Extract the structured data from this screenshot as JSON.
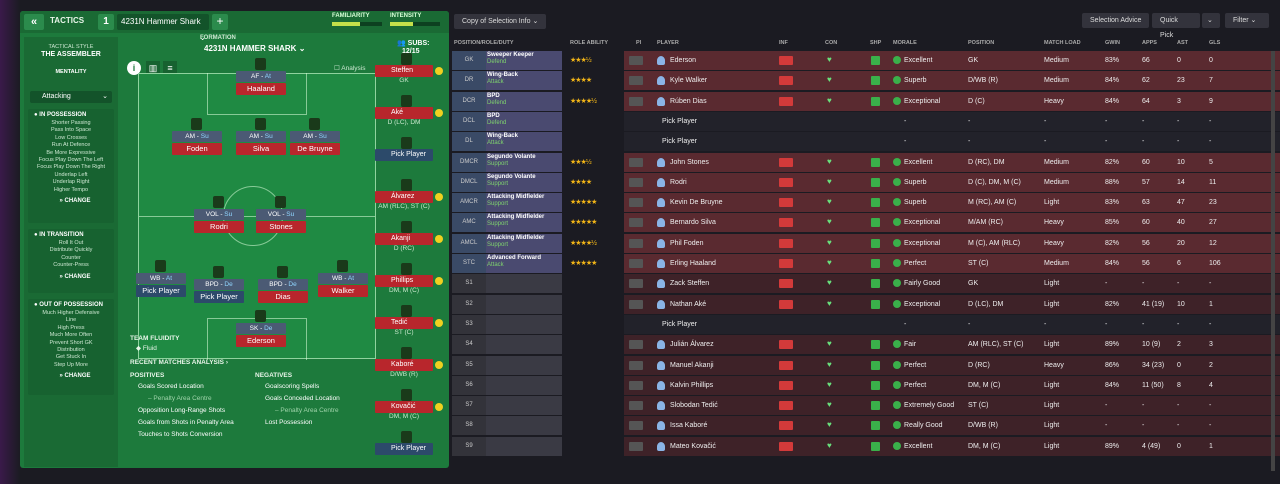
{
  "topbar": {
    "tactics": "TACTICS",
    "tab_num": "1",
    "tactic_name": "4231N Hammer Shark",
    "familiarity": "FAMILIARITY",
    "intensity": "INTENSITY",
    "familiarity_level": 0.55,
    "intensity_level": 0.45
  },
  "style": {
    "label": "TACTICAL STYLE",
    "name": "THE ASSEMBLER",
    "mentality_label": "MENTALITY",
    "mentality": "Attacking",
    "in_possession": {
      "title": "IN POSSESSION",
      "items": [
        "Shorter Passing",
        "Pass Into Space",
        "Low Crosses",
        "Run At Defence",
        "Be More Expressive",
        "Focus Play Down The Left",
        "Focus Play Down The Right",
        "Underlap Left",
        "Underlap Right",
        "Higher Tempo"
      ],
      "change": "CHANGE"
    },
    "in_transition": {
      "title": "IN TRANSITION",
      "items": [
        "Roll It Out",
        "Distribute Quickly",
        "Counter",
        "Counter-Press"
      ],
      "change": "CHANGE"
    },
    "out_possession": {
      "title": "OUT OF POSSESSION",
      "items": [
        "Much Higher Defensive",
        "Line",
        "High Press",
        "Much More Often",
        "Prevent Short GK",
        "Distribution",
        "Get Stuck In",
        "Step Up More"
      ],
      "change": "CHANGE"
    }
  },
  "formation": {
    "label": "FORMATION",
    "name": "4231N HAMMER SHARK",
    "analysis": "Analysis",
    "pieces": [
      {
        "role": "AF",
        "duty": "At",
        "name": "Haaland"
      },
      {
        "role": "AM",
        "duty": "Su",
        "name": "Foden"
      },
      {
        "role": "AM",
        "duty": "Su",
        "name": "Silva"
      },
      {
        "role": "AM",
        "duty": "Su",
        "name": "De Bruyne"
      },
      {
        "role": "VOL",
        "duty": "Su",
        "name": "Rodri"
      },
      {
        "role": "VOL",
        "duty": "Su",
        "name": "Stones"
      },
      {
        "role": "WB",
        "duty": "At",
        "name": "Pick Player"
      },
      {
        "role": "BPD",
        "duty": "De",
        "name": "Pick Player"
      },
      {
        "role": "BPD",
        "duty": "De",
        "name": "Dias"
      },
      {
        "role": "WB",
        "duty": "At",
        "name": "Walker"
      },
      {
        "role": "SK",
        "duty": "De",
        "name": "Ederson"
      }
    ]
  },
  "subs": {
    "label": "SUBS:",
    "count": "12/15",
    "items": [
      {
        "name": "Steffen",
        "pos": "GK"
      },
      {
        "name": "Aké",
        "pos": "D (LC), DM"
      },
      {
        "name": "Pick Player",
        "pos": ""
      },
      {
        "name": "Álvarez",
        "pos": "AM (RLC), ST (C)"
      },
      {
        "name": "Akanji",
        "pos": "D (RC)"
      },
      {
        "name": "Phillips",
        "pos": "DM, M (C)"
      },
      {
        "name": "Tedić",
        "pos": "ST (C)"
      },
      {
        "name": "Kaboré",
        "pos": "D/WB (R)"
      },
      {
        "name": "Kovačić",
        "pos": "DM, M (C)"
      },
      {
        "name": "Pick Player",
        "pos": ""
      }
    ]
  },
  "fluidity": {
    "label": "TEAM FLUIDITY",
    "value": "Fluid"
  },
  "analysis": {
    "title": "RECENT MATCHES ANALYSIS",
    "positives_label": "POSITIVES",
    "negatives_label": "NEGATIVES",
    "positives": [
      "Goals Scored Location",
      "– Penalty Area Centre",
      "Opposition Long-Range Shots",
      "Goals from Shots in Penalty Area",
      "Touches to Shots Conversion"
    ],
    "negatives": [
      "Goalscoring Spells",
      "Goals Conceded Location",
      "– Penalty Area Centre",
      "Lost Possession"
    ]
  },
  "toolbar": {
    "copy": "Copy of Selection Info",
    "advice": "Selection Advice",
    "quick": "Quick Pick",
    "filter": "Filter"
  },
  "headers": [
    "POSITION/ROLE/DUTY",
    "ROLE ABILITY",
    "PI",
    "PLAYER",
    "INF",
    "CON",
    "SHP",
    "MORALE",
    "POSITION",
    "MATCH LOAD",
    "GWIN",
    "APPS",
    "AST",
    "GLS"
  ],
  "rows": [
    {
      "pos": "GK",
      "role": "Sweeper Keeper",
      "duty": "Defend",
      "stars": "★★★½",
      "player": "Ederson",
      "morale": "Excellent",
      "position": "GK",
      "load": "Medium",
      "gwin": "83%",
      "apps": "66",
      "ast": "0",
      "gls": "0",
      "c": "#5a2a30"
    },
    {
      "pos": "DR",
      "role": "Wing-Back",
      "duty": "Attack",
      "stars": "★★★★",
      "player": "Kyle Walker",
      "morale": "Superb",
      "position": "D/WB (R)",
      "load": "Medium",
      "gwin": "84%",
      "apps": "62",
      "ast": "23",
      "gls": "7",
      "c": "#5a2a30"
    },
    {
      "pos": "DCR",
      "role": "BPD",
      "duty": "Defend",
      "stars": "★★★★½",
      "player": "Rúben Dias",
      "morale": "Exceptional",
      "position": "D (C)",
      "load": "Heavy",
      "gwin": "84%",
      "apps": "64",
      "ast": "3",
      "gls": "9",
      "c": "#5a2a30"
    },
    {
      "pos": "DCL",
      "role": "BPD",
      "duty": "Defend",
      "stars": "",
      "player": "Pick Player",
      "morale": "-",
      "position": "-",
      "load": "-",
      "gwin": "-",
      "apps": "-",
      "ast": "-",
      "gls": "-",
      "c": "#22222a"
    },
    {
      "pos": "DL",
      "role": "Wing-Back",
      "duty": "Attack",
      "stars": "",
      "player": "Pick Player",
      "morale": "-",
      "position": "-",
      "load": "-",
      "gwin": "-",
      "apps": "-",
      "ast": "-",
      "gls": "-",
      "c": "#22222a"
    },
    {
      "pos": "DMCR",
      "role": "Segundo Volante",
      "duty": "Support",
      "stars": "★★★½",
      "player": "John Stones",
      "morale": "Excellent",
      "position": "D (RC), DM",
      "load": "Medium",
      "gwin": "82%",
      "apps": "60",
      "ast": "10",
      "gls": "5",
      "c": "#5a2a30"
    },
    {
      "pos": "DMCL",
      "role": "Segundo Volante",
      "duty": "Support",
      "stars": "★★★★",
      "player": "Rodri",
      "morale": "Superb",
      "position": "D (C), DM, M (C)",
      "load": "Medium",
      "gwin": "88%",
      "apps": "57",
      "ast": "14",
      "gls": "11",
      "c": "#5a2a30"
    },
    {
      "pos": "AMCR",
      "role": "Attacking Midfielder",
      "duty": "Support",
      "stars": "★★★★★",
      "player": "Kevin De Bruyne",
      "morale": "Superb",
      "position": "M (RC), AM (C)",
      "load": "Light",
      "gwin": "83%",
      "apps": "63",
      "ast": "47",
      "gls": "23",
      "c": "#5a2a30"
    },
    {
      "pos": "AMC",
      "role": "Attacking Midfielder",
      "duty": "Support",
      "stars": "★★★★★",
      "player": "Bernardo Silva",
      "morale": "Exceptional",
      "position": "M/AM (RC)",
      "load": "Heavy",
      "gwin": "85%",
      "apps": "60",
      "ast": "40",
      "gls": "27",
      "c": "#5a2a30"
    },
    {
      "pos": "AMCL",
      "role": "Attacking Midfielder",
      "duty": "Support",
      "stars": "★★★★½",
      "player": "Phil Foden",
      "morale": "Exceptional",
      "position": "M (C), AM (RLC)",
      "load": "Heavy",
      "gwin": "82%",
      "apps": "56",
      "ast": "20",
      "gls": "12",
      "c": "#5a2a30"
    },
    {
      "pos": "STC",
      "role": "Advanced Forward",
      "duty": "Attack",
      "stars": "★★★★★",
      "player": "Erling Haaland",
      "morale": "Perfect",
      "position": "ST (C)",
      "load": "Medium",
      "gwin": "84%",
      "apps": "56",
      "ast": "6",
      "gls": "106",
      "c": "#5a2a30"
    },
    {
      "pos": "S1",
      "role": "",
      "duty": "",
      "stars": "",
      "player": "Zack Steffen",
      "morale": "Fairly Good",
      "position": "GK",
      "load": "Light",
      "gwin": "-",
      "apps": "-",
      "ast": "-",
      "gls": "-",
      "c": "#3e2228"
    },
    {
      "pos": "S2",
      "role": "",
      "duty": "",
      "stars": "",
      "player": "Nathan Aké",
      "morale": "Exceptional",
      "position": "D (LC), DM",
      "load": "Light",
      "gwin": "82%",
      "apps": "41 (19)",
      "ast": "10",
      "gls": "1",
      "c": "#3e2228"
    },
    {
      "pos": "S3",
      "role": "",
      "duty": "",
      "stars": "",
      "player": "Pick Player",
      "morale": "-",
      "position": "-",
      "load": "-",
      "gwin": "-",
      "apps": "-",
      "ast": "-",
      "gls": "-",
      "c": "#22222a"
    },
    {
      "pos": "S4",
      "role": "",
      "duty": "",
      "stars": "",
      "player": "Julián Álvarez",
      "morale": "Fair",
      "position": "AM (RLC), ST (C)",
      "load": "Light",
      "gwin": "89%",
      "apps": "10 (9)",
      "ast": "2",
      "gls": "3",
      "c": "#3e2228"
    },
    {
      "pos": "S5",
      "role": "",
      "duty": "",
      "stars": "",
      "player": "Manuel Akanji",
      "morale": "Perfect",
      "position": "D (RC)",
      "load": "Heavy",
      "gwin": "86%",
      "apps": "34 (23)",
      "ast": "0",
      "gls": "2",
      "c": "#3e2228"
    },
    {
      "pos": "S6",
      "role": "",
      "duty": "",
      "stars": "",
      "player": "Kalvin Phillips",
      "morale": "Perfect",
      "position": "DM, M (C)",
      "load": "Light",
      "gwin": "84%",
      "apps": "11 (50)",
      "ast": "8",
      "gls": "4",
      "c": "#3e2228"
    },
    {
      "pos": "S7",
      "role": "",
      "duty": "",
      "stars": "",
      "player": "Slobodan Tedić",
      "morale": "Extremely Good",
      "position": "ST (C)",
      "load": "Light",
      "gwin": "-",
      "apps": "-",
      "ast": "-",
      "gls": "-",
      "c": "#3e2228"
    },
    {
      "pos": "S8",
      "role": "",
      "duty": "",
      "stars": "",
      "player": "Issa Kaboré",
      "morale": "Really Good",
      "position": "D/WB (R)",
      "load": "Light",
      "gwin": "-",
      "apps": "-",
      "ast": "-",
      "gls": "-",
      "c": "#3e2228"
    },
    {
      "pos": "S9",
      "role": "",
      "duty": "",
      "stars": "",
      "player": "Mateo Kovačić",
      "morale": "Excellent",
      "position": "DM, M (C)",
      "load": "Light",
      "gwin": "89%",
      "apps": "4 (49)",
      "ast": "0",
      "gls": "1",
      "c": "#3e2228"
    }
  ]
}
